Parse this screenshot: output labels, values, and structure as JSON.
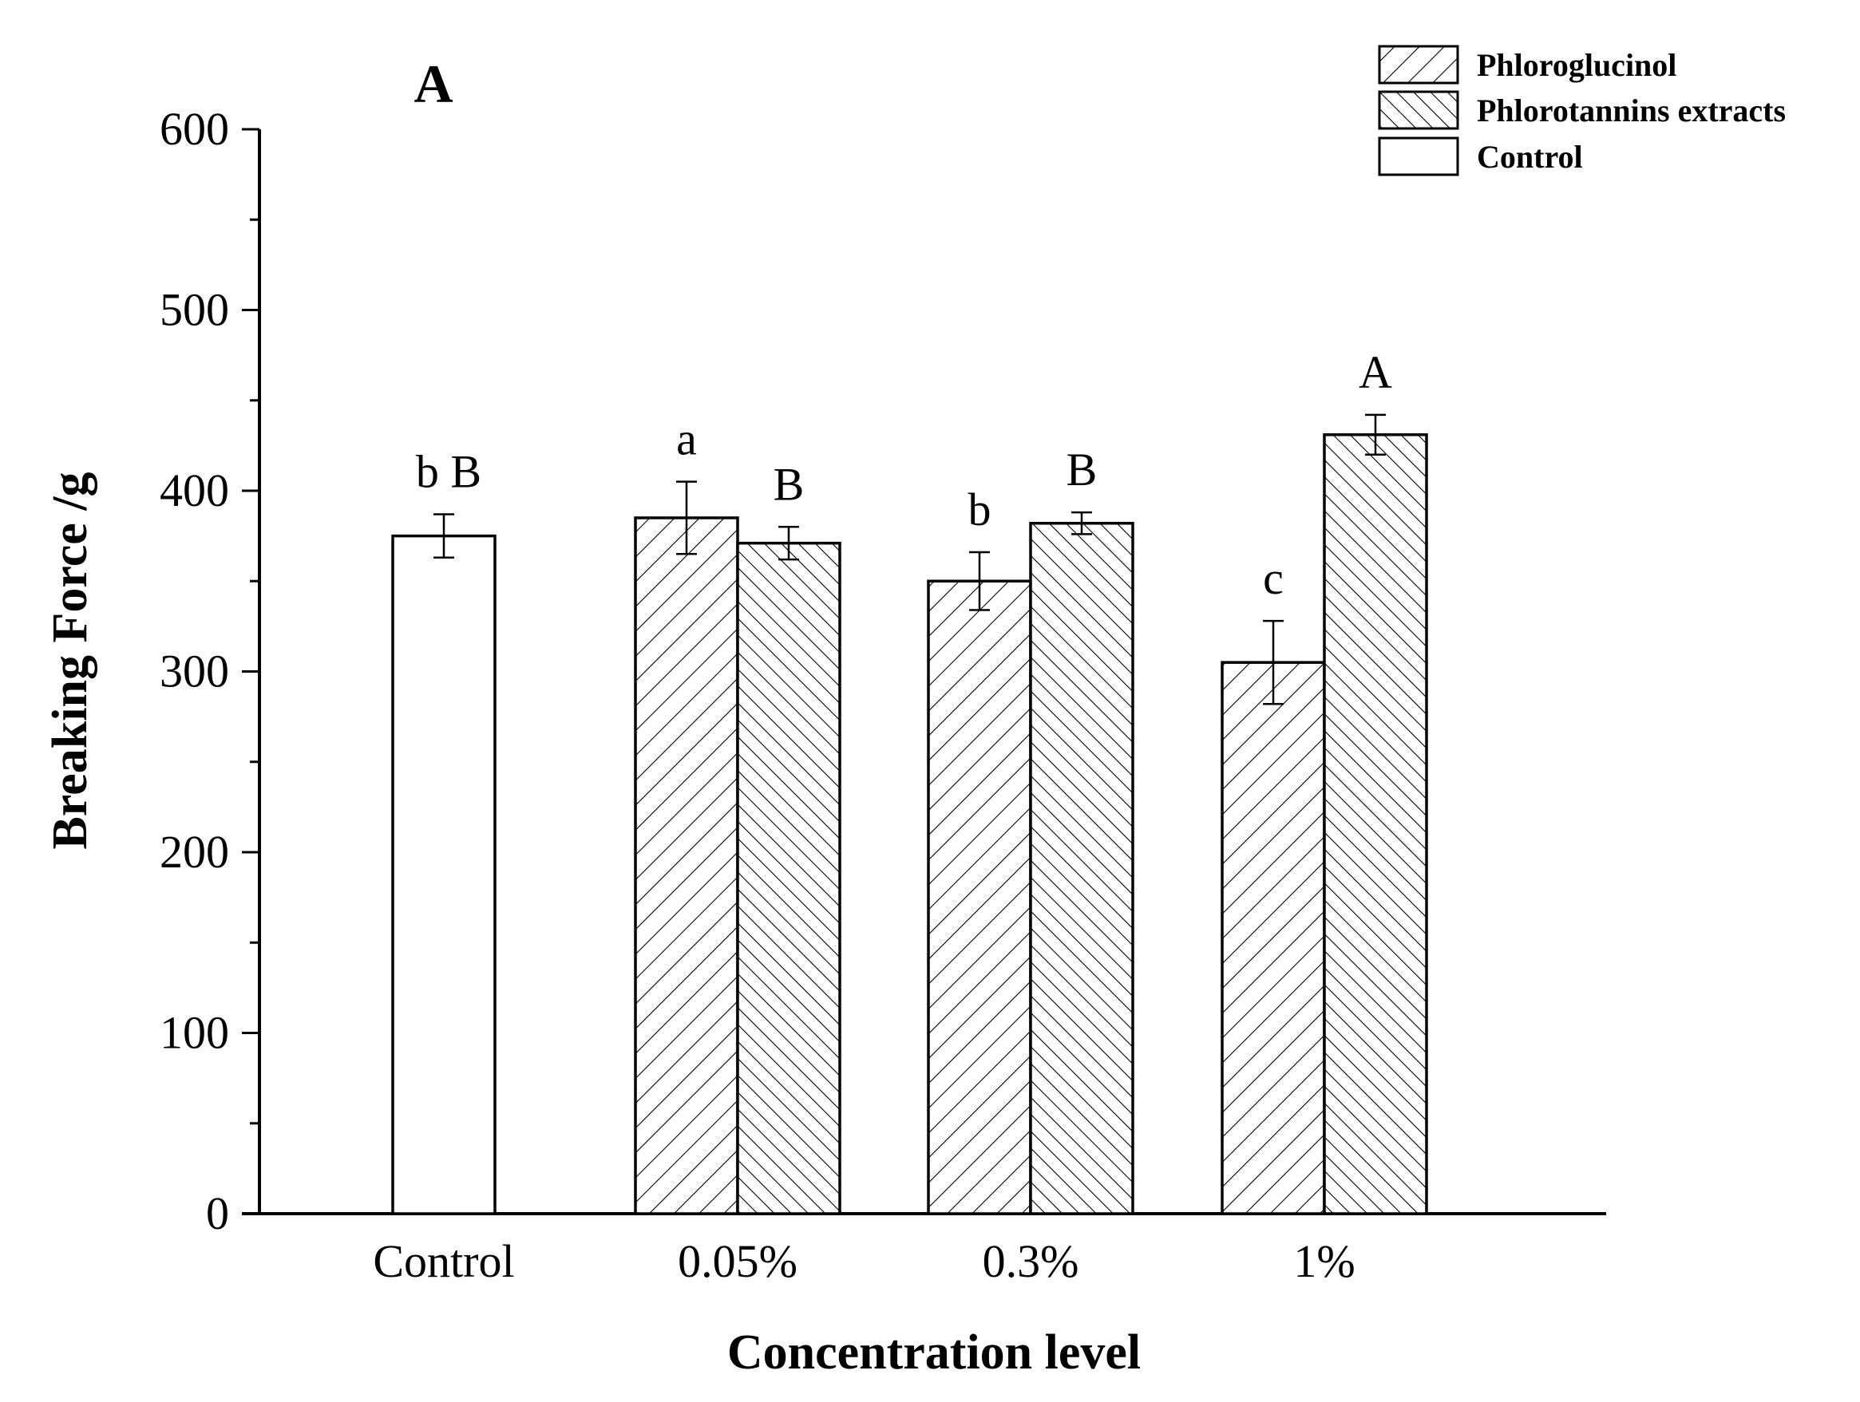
{
  "chart_data": {
    "type": "bar",
    "panel_label": "A",
    "xlabel": "Concentration level",
    "ylabel": "Breaking Force /g",
    "ylim": [
      0,
      600
    ],
    "yticks": [
      0,
      100,
      200,
      300,
      400,
      500,
      600
    ],
    "y_minor_step": 50,
    "categories": [
      "Control",
      "0.05%",
      "0.3%",
      "1%"
    ],
    "series": [
      {
        "name": "Phloroglucinol",
        "pattern": "hatch-forward",
        "values": [
          null,
          385,
          350,
          305
        ],
        "errors": [
          null,
          20,
          16,
          23
        ],
        "labels": [
          null,
          "a",
          "b",
          "c"
        ]
      },
      {
        "name": "Phlorotannins extracts",
        "pattern": "hatch-back",
        "values": [
          null,
          371,
          382,
          431
        ],
        "errors": [
          null,
          9,
          6,
          11
        ],
        "labels": [
          null,
          "B",
          "B",
          "A"
        ]
      },
      {
        "name": "Control",
        "pattern": "none",
        "values": [
          375,
          null,
          null,
          null
        ],
        "errors": [
          12,
          null,
          null,
          null
        ],
        "labels": [
          "b B",
          null,
          null,
          null
        ]
      }
    ],
    "legend": {
      "position": "top-right",
      "entries": [
        "Phloroglucinol",
        "Phlorotannins extracts",
        "Control"
      ]
    },
    "colors": {
      "stroke": "#000000",
      "fill": "#ffffff"
    }
  }
}
